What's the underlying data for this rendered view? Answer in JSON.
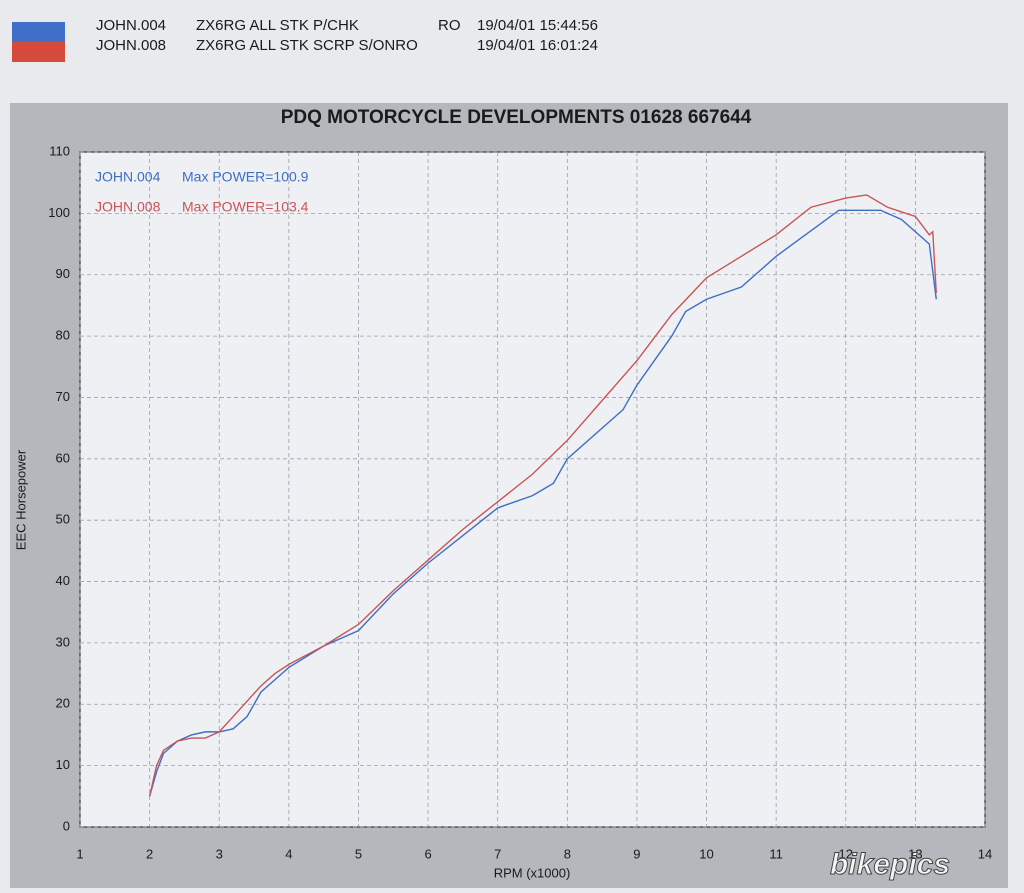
{
  "header": {
    "rows": [
      {
        "file": "JOHN.004",
        "desc": "ZX6RG ALL STK P/CHK",
        "code": "RO",
        "stamp": "19/04/01 15:44:56"
      },
      {
        "file": "JOHN.008",
        "desc": "ZX6RG ALL STK SCRP S/ONRO",
        "stamp": "19/04/01 16:01:24"
      }
    ]
  },
  "watermark": "bikepics",
  "chart_data": {
    "type": "line",
    "title": "PDQ MOTORCYCLE DEVELOPMENTS  01628 667644",
    "xlabel": "RPM (x1000)",
    "ylabel": "EEC Horsepower",
    "xlim": [
      1,
      14
    ],
    "xticks": [
      1,
      2,
      3,
      4,
      5,
      6,
      7,
      8,
      9,
      10,
      11,
      12,
      13,
      14
    ],
    "ylim": [
      0,
      110
    ],
    "yticks": [
      0,
      10,
      20,
      30,
      40,
      50,
      60,
      70,
      80,
      90,
      100,
      110
    ],
    "grid": true,
    "series": [
      {
        "name": "JOHN.004",
        "label": "Max POWER=100.9",
        "color": "#3d6fc4",
        "x": [
          2.0,
          2.1,
          2.2,
          2.4,
          2.6,
          2.8,
          3.0,
          3.2,
          3.4,
          3.6,
          3.8,
          4.0,
          4.5,
          5.0,
          5.5,
          6.0,
          6.5,
          7.0,
          7.5,
          7.8,
          8.0,
          8.5,
          8.8,
          9.0,
          9.5,
          9.7,
          10.0,
          10.5,
          10.8,
          11.0,
          11.3,
          11.6,
          11.9,
          12.2,
          12.5,
          12.8,
          13.0,
          13.1,
          13.2,
          13.3
        ],
        "values": [
          5,
          9,
          12,
          14,
          15,
          15.5,
          15.5,
          16,
          18,
          22,
          24,
          26,
          29.5,
          32,
          38,
          43,
          47.5,
          52,
          54,
          56,
          60,
          65,
          68,
          72,
          80,
          84,
          86,
          88,
          91,
          93,
          95.5,
          98,
          100.5,
          100.5,
          100.5,
          99,
          97,
          96,
          95,
          86
        ]
      },
      {
        "name": "JOHN.008",
        "label": "Max POWER=103.4",
        "color": "#c85558",
        "x": [
          2.0,
          2.1,
          2.2,
          2.4,
          2.6,
          2.8,
          3.0,
          3.2,
          3.4,
          3.6,
          3.8,
          4.0,
          4.5,
          5.0,
          5.5,
          6.0,
          6.5,
          7.0,
          7.5,
          8.0,
          8.5,
          9.0,
          9.5,
          10.0,
          10.5,
          11.0,
          11.5,
          12.0,
          12.3,
          12.6,
          13.0,
          13.2,
          13.25,
          13.3
        ],
        "values": [
          5,
          10,
          12.5,
          14,
          14.5,
          14.5,
          15.5,
          18,
          20.5,
          23,
          25,
          26.5,
          29.5,
          33,
          38.5,
          43.5,
          48.5,
          53,
          57.5,
          63,
          69.5,
          76,
          83.5,
          89.5,
          93,
          96.5,
          101,
          102.5,
          103,
          101,
          99.5,
          96.5,
          97,
          87
        ]
      }
    ]
  }
}
